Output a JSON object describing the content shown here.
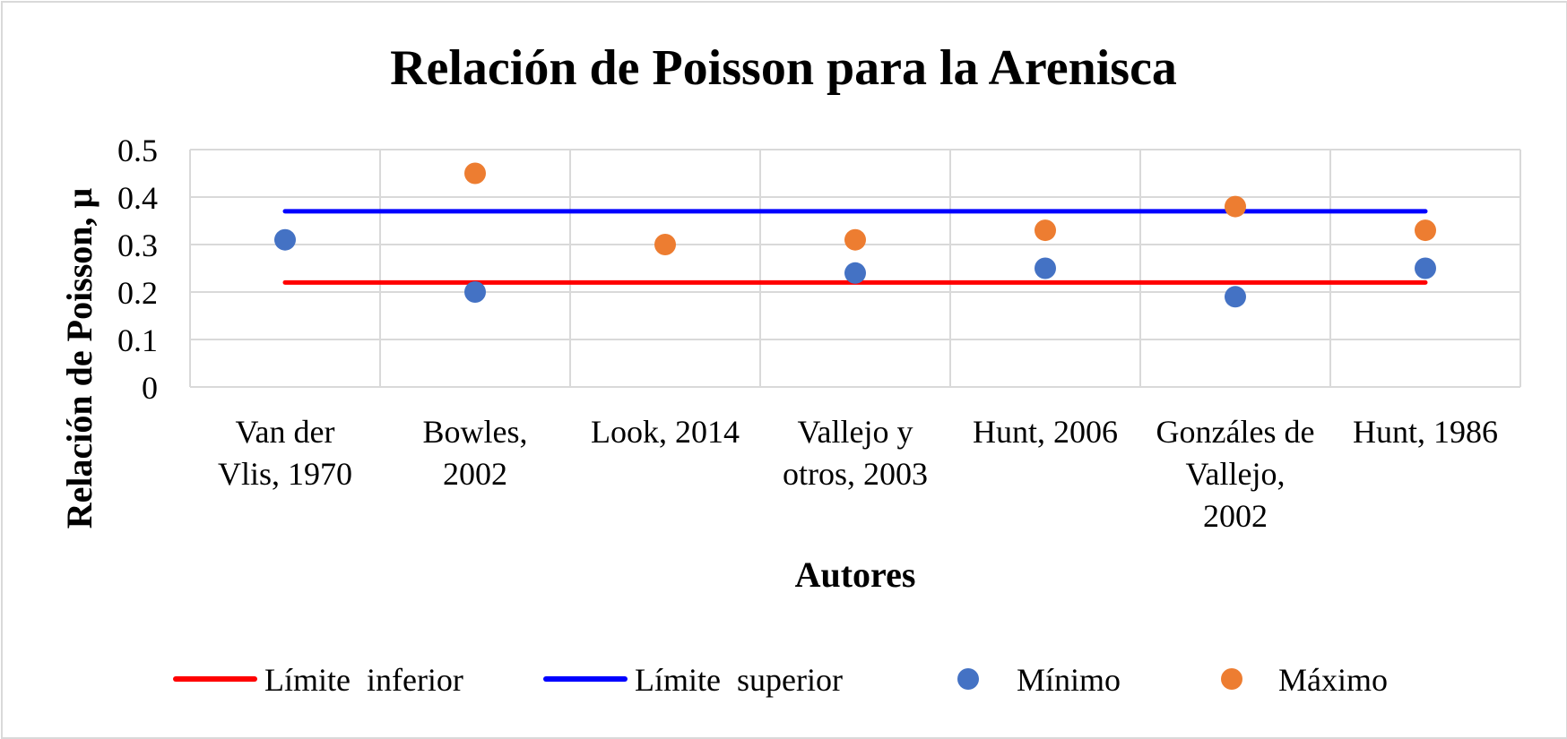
{
  "chart_data": {
    "type": "scatter",
    "title": "Relación de Poisson para la Arenisca",
    "xlabel": "Autores",
    "ylabel": "Relación de Poisson, μ",
    "ylim": [
      0,
      0.5
    ],
    "yticks": [
      "0",
      "0.1",
      "0.2",
      "0.3",
      "0.4",
      "0.5"
    ],
    "grid": true,
    "legend_position": "bottom",
    "categories": [
      [
        "Van der",
        "Vlis, 1970"
      ],
      [
        "Bowles,",
        "2002"
      ],
      [
        "Look, 2014"
      ],
      [
        "Vallejo y",
        "otros, 2003"
      ],
      [
        "Hunt, 2006"
      ],
      [
        "Gonzáles de",
        "Vallejo,",
        "2002"
      ],
      [
        "Hunt, 1986"
      ]
    ],
    "series": [
      {
        "name": "Límite  inferior",
        "kind": "line",
        "color": "#ff0000",
        "values": [
          0.22,
          0.22,
          0.22,
          0.22,
          0.22,
          0.22,
          0.22
        ]
      },
      {
        "name": "Límite  superior",
        "kind": "line",
        "color": "#0000ff",
        "values": [
          0.37,
          0.37,
          0.37,
          0.37,
          0.37,
          0.37,
          0.37
        ]
      },
      {
        "name": "Mínimo",
        "kind": "marker",
        "color": "#4472c4",
        "values": [
          0.31,
          0.2,
          null,
          0.24,
          0.25,
          0.19,
          0.25
        ]
      },
      {
        "name": "Máximo",
        "kind": "marker",
        "color": "#ed7d31",
        "values": [
          null,
          0.45,
          0.3,
          0.31,
          0.33,
          0.38,
          0.33
        ]
      }
    ]
  }
}
